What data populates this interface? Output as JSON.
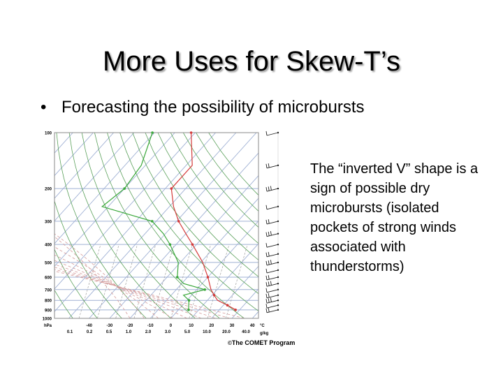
{
  "slide": {
    "title": "More Uses for Skew-T’s",
    "bullet": "•",
    "bullet_text": "Forecasting the possibility of microbursts",
    "side_text": "The “inverted V” shape is a sign of possible dry microbursts (isolated pockets of strong winds associated with thunderstorms)",
    "credit_symbol": "©",
    "credit_text": "The COMET Program"
  },
  "skew_t": {
    "pressure_unit": "hPa",
    "temp_unit": "°C",
    "mixing_unit": "g/kg",
    "pressure_levels": [
      100,
      200,
      300,
      400,
      500,
      600,
      700,
      800,
      900,
      1000
    ],
    "pressure_labels": [
      "100",
      "200",
      "300",
      "400",
      "500",
      "600",
      "700",
      "800",
      "900",
      "1000"
    ],
    "temp_ticks": [
      -40,
      -30,
      -20,
      -10,
      0,
      10,
      20,
      30,
      40
    ],
    "temp_labels": [
      "-40",
      "-30",
      "-20",
      "-10",
      "0",
      "10",
      "20",
      "30",
      "40"
    ],
    "mixing_labels": [
      "0.1",
      "0.2",
      "0.5",
      "1.0",
      "2.0",
      "3.0",
      "5.0",
      "10.0",
      "20.0",
      "40.0"
    ],
    "colors": {
      "temperature": "#d43a3a",
      "dewpoint": "#3aa83a",
      "isotherm": "#9fb0d4",
      "dry_adiabat": "#5aa05a",
      "moist_adiabat": "#d49a9a",
      "mixing": "#a0a0a0",
      "isobar": "#9fb0d4"
    },
    "temperature_profile": [
      {
        "p": 100,
        "t": -72
      },
      {
        "p": 150,
        "t": -57
      },
      {
        "p": 200,
        "t": -57
      },
      {
        "p": 250,
        "t": -48
      },
      {
        "p": 300,
        "t": -39
      },
      {
        "p": 350,
        "t": -30
      },
      {
        "p": 400,
        "t": -22
      },
      {
        "p": 500,
        "t": -9
      },
      {
        "p": 600,
        "t": 0
      },
      {
        "p": 700,
        "t": 7
      },
      {
        "p": 750,
        "t": 11
      },
      {
        "p": 800,
        "t": 15
      },
      {
        "p": 850,
        "t": 22
      },
      {
        "p": 900,
        "t": 28
      }
    ],
    "dewpoint_profile": [
      {
        "p": 100,
        "t": -91
      },
      {
        "p": 150,
        "t": -82
      },
      {
        "p": 200,
        "t": -80
      },
      {
        "p": 250,
        "t": -83
      },
      {
        "p": 300,
        "t": -52
      },
      {
        "p": 350,
        "t": -41
      },
      {
        "p": 400,
        "t": -33
      },
      {
        "p": 500,
        "t": -21
      },
      {
        "p": 600,
        "t": -15
      },
      {
        "p": 650,
        "t": -9
      },
      {
        "p": 700,
        "t": 4
      },
      {
        "p": 750,
        "t": -4
      },
      {
        "p": 800,
        "t": 1
      },
      {
        "p": 850,
        "t": 3
      },
      {
        "p": 900,
        "t": 5
      }
    ],
    "wind_barb_levels": [
      100,
      150,
      200,
      250,
      300,
      350,
      400,
      450,
      500,
      550,
      600,
      650,
      700,
      750,
      800,
      850,
      900
    ]
  }
}
